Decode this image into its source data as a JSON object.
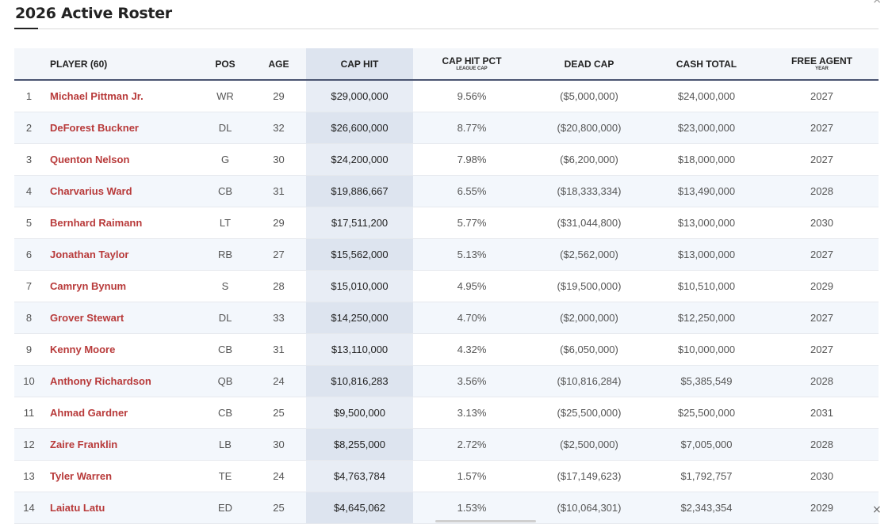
{
  "title": "2026 Active Roster",
  "colors": {
    "player_link": "#b83a3a",
    "header_rule": "#4a5470",
    "cap_column": "#e8edf5"
  },
  "headers": {
    "player": "PLAYER (60)",
    "pos": "POS",
    "age": "AGE",
    "cap_hit": "CAP HIT",
    "cap_hit_pct": "CAP HIT PCT",
    "cap_hit_pct_sub": "LEAGUE CAP",
    "dead_cap": "DEAD CAP",
    "cash_total": "CASH TOTAL",
    "free_agent": "FREE AGENT",
    "free_agent_sub": "YEAR"
  },
  "rows": [
    {
      "rank": "1",
      "player": "Michael Pittman Jr.",
      "pos": "WR",
      "age": "29",
      "cap_hit": "$29,000,000",
      "pct": "9.56%",
      "dead": "($5,000,000)",
      "cash": "$24,000,000",
      "fa": "2027"
    },
    {
      "rank": "2",
      "player": "DeForest Buckner",
      "pos": "DL",
      "age": "32",
      "cap_hit": "$26,600,000",
      "pct": "8.77%",
      "dead": "($20,800,000)",
      "cash": "$23,000,000",
      "fa": "2027"
    },
    {
      "rank": "3",
      "player": "Quenton Nelson",
      "pos": "G",
      "age": "30",
      "cap_hit": "$24,200,000",
      "pct": "7.98%",
      "dead": "($6,200,000)",
      "cash": "$18,000,000",
      "fa": "2027"
    },
    {
      "rank": "4",
      "player": "Charvarius Ward",
      "pos": "CB",
      "age": "31",
      "cap_hit": "$19,886,667",
      "pct": "6.55%",
      "dead": "($18,333,334)",
      "cash": "$13,490,000",
      "fa": "2028"
    },
    {
      "rank": "5",
      "player": "Bernhard Raimann",
      "pos": "LT",
      "age": "29",
      "cap_hit": "$17,511,200",
      "pct": "5.77%",
      "dead": "($31,044,800)",
      "cash": "$13,000,000",
      "fa": "2030"
    },
    {
      "rank": "6",
      "player": "Jonathan Taylor",
      "pos": "RB",
      "age": "27",
      "cap_hit": "$15,562,000",
      "pct": "5.13%",
      "dead": "($2,562,000)",
      "cash": "$13,000,000",
      "fa": "2027"
    },
    {
      "rank": "7",
      "player": "Camryn Bynum",
      "pos": "S",
      "age": "28",
      "cap_hit": "$15,010,000",
      "pct": "4.95%",
      "dead": "($19,500,000)",
      "cash": "$10,510,000",
      "fa": "2029"
    },
    {
      "rank": "8",
      "player": "Grover Stewart",
      "pos": "DL",
      "age": "33",
      "cap_hit": "$14,250,000",
      "pct": "4.70%",
      "dead": "($2,000,000)",
      "cash": "$12,250,000",
      "fa": "2027"
    },
    {
      "rank": "9",
      "player": "Kenny Moore",
      "pos": "CB",
      "age": "31",
      "cap_hit": "$13,110,000",
      "pct": "4.32%",
      "dead": "($6,050,000)",
      "cash": "$10,000,000",
      "fa": "2027"
    },
    {
      "rank": "10",
      "player": "Anthony Richardson",
      "pos": "QB",
      "age": "24",
      "cap_hit": "$10,816,283",
      "pct": "3.56%",
      "dead": "($10,816,284)",
      "cash": "$5,385,549",
      "fa": "2028"
    },
    {
      "rank": "11",
      "player": "Ahmad Gardner",
      "pos": "CB",
      "age": "25",
      "cap_hit": "$9,500,000",
      "pct": "3.13%",
      "dead": "($25,500,000)",
      "cash": "$25,500,000",
      "fa": "2031"
    },
    {
      "rank": "12",
      "player": "Zaire Franklin",
      "pos": "LB",
      "age": "30",
      "cap_hit": "$8,255,000",
      "pct": "2.72%",
      "dead": "($2,500,000)",
      "cash": "$7,005,000",
      "fa": "2028"
    },
    {
      "rank": "13",
      "player": "Tyler Warren",
      "pos": "TE",
      "age": "24",
      "cap_hit": "$4,763,784",
      "pct": "1.57%",
      "dead": "($17,149,623)",
      "cash": "$1,792,757",
      "fa": "2030"
    },
    {
      "rank": "14",
      "player": "Laiatu Latu",
      "pos": "ED",
      "age": "25",
      "cap_hit": "$4,645,062",
      "pct": "1.53%",
      "dead": "($10,064,301)",
      "cash": "$2,343,354",
      "fa": "2029"
    }
  ],
  "icons": {
    "close": "close-icon"
  },
  "close_glyph": "×"
}
